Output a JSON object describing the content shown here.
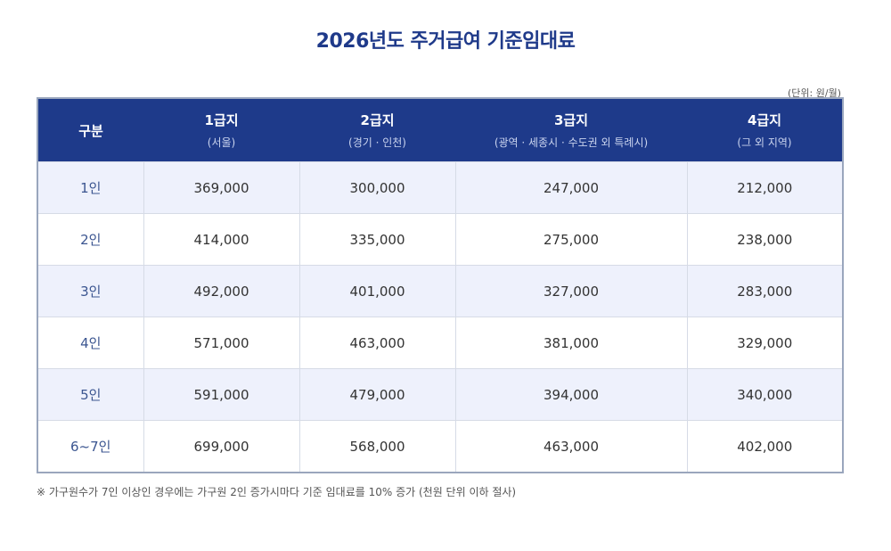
{
  "title": "2026년도 주거급여 기준임대료",
  "unit_label": "(단위: 원/월)",
  "table": {
    "header_first": "구분",
    "columns": [
      {
        "name": "1급지",
        "sub": "(서울)"
      },
      {
        "name": "2급지",
        "sub": "(경기 · 인천)"
      },
      {
        "name": "3급지",
        "sub": "(광역 · 세종시 · 수도권 외 특례시)"
      },
      {
        "name": "4급지",
        "sub": "(그 외 지역)"
      }
    ],
    "rows": [
      {
        "label": "1인",
        "values": [
          "369,000",
          "300,000",
          "247,000",
          "212,000"
        ]
      },
      {
        "label": "2인",
        "values": [
          "414,000",
          "335,000",
          "275,000",
          "238,000"
        ]
      },
      {
        "label": "3인",
        "values": [
          "492,000",
          "401,000",
          "327,000",
          "283,000"
        ]
      },
      {
        "label": "4인",
        "values": [
          "571,000",
          "463,000",
          "381,000",
          "329,000"
        ]
      },
      {
        "label": "5인",
        "values": [
          "591,000",
          "479,000",
          "394,000",
          "340,000"
        ]
      },
      {
        "label": "6~7인",
        "values": [
          "699,000",
          "568,000",
          "463,000",
          "402,000"
        ]
      }
    ]
  },
  "footnote": "※ 가구원수가 7인 이상인 경우에는 가구원 2인 증가시마다 기준 임대료를 10% 증가 (천원 단위 이하 절사)",
  "colors": {
    "title": "#1f3a8a",
    "header_bg": "#1e3a8a",
    "alt_row_bg": "#eef1fc",
    "border": "#9aa6bd"
  }
}
